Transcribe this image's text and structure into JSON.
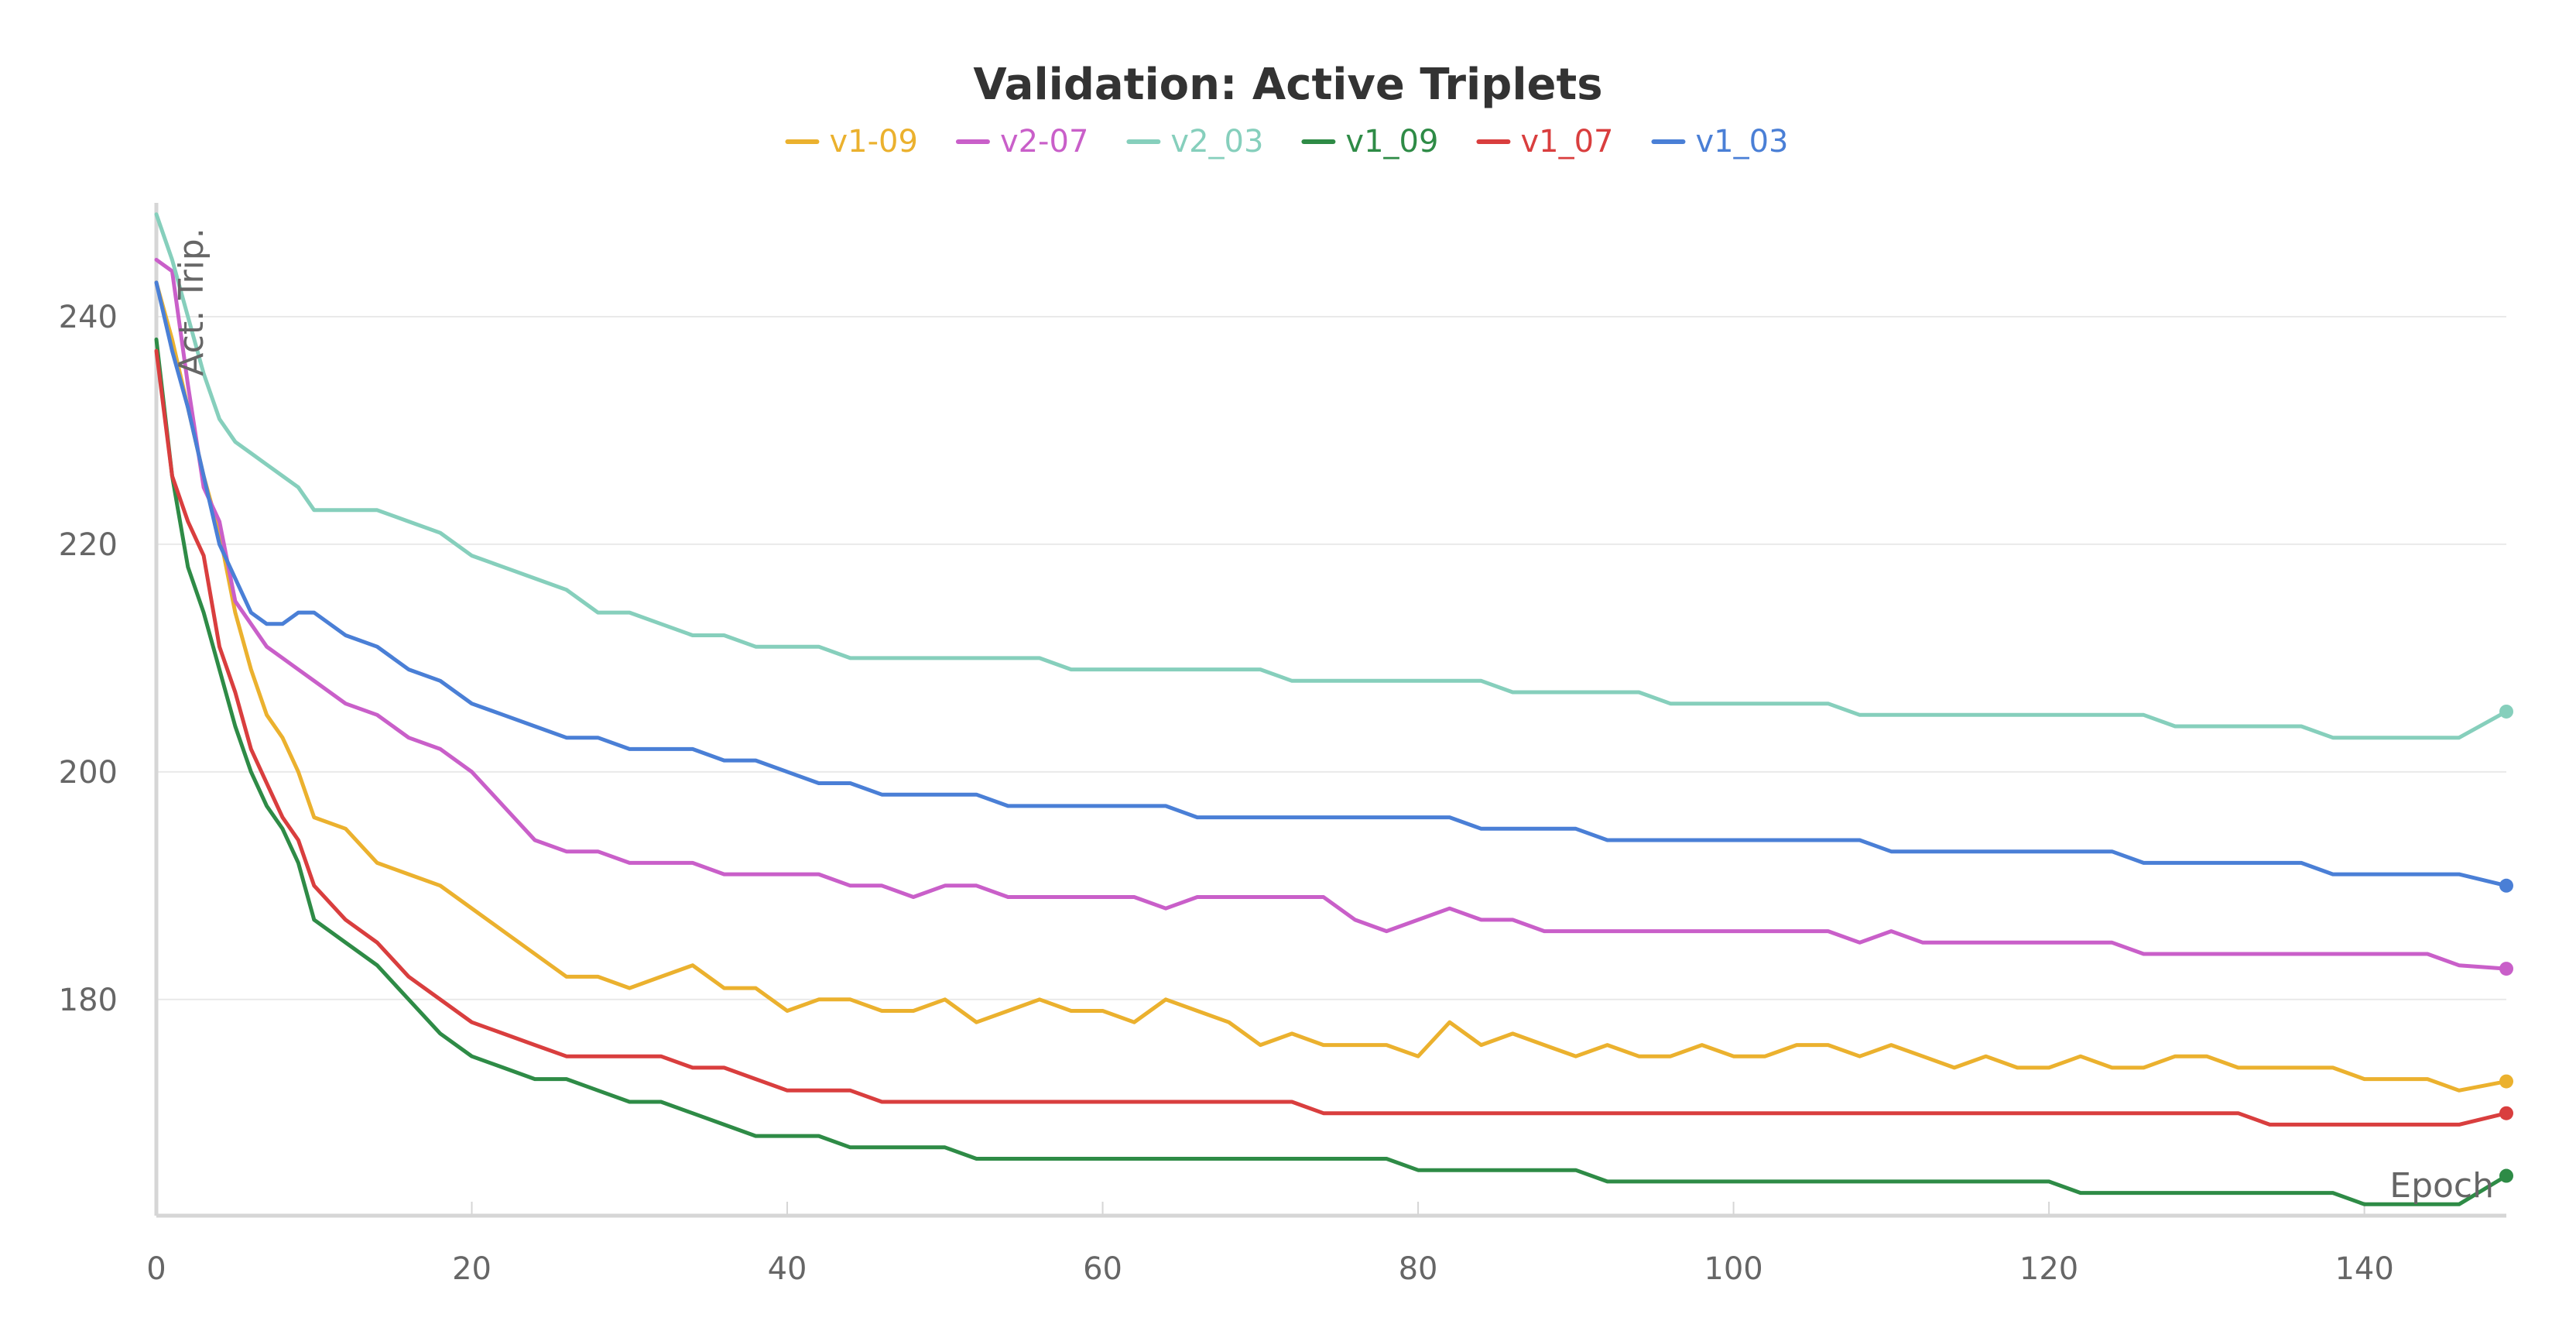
{
  "chart_data": {
    "type": "line",
    "title": "Validation: Active Triplets",
    "xlabel": "Epoch",
    "ylabel": "Act. Trip.",
    "xlim": [
      0,
      149
    ],
    "ylim": [
      161,
      250
    ],
    "x_ticks": [
      0,
      20,
      40,
      60,
      80,
      100,
      120,
      140
    ],
    "y_ticks": [
      180,
      200,
      220,
      240
    ],
    "grid": true,
    "legend_position": "top-center",
    "series": [
      {
        "name": "v1-09",
        "color": "#EBB12E",
        "x": [
          0,
          1,
          2,
          3,
          4,
          5,
          6,
          7,
          8,
          9,
          10,
          12,
          14,
          16,
          18,
          20,
          22,
          24,
          26,
          28,
          30,
          32,
          34,
          36,
          38,
          40,
          42,
          44,
          46,
          48,
          50,
          52,
          54,
          56,
          58,
          60,
          62,
          64,
          66,
          68,
          70,
          72,
          74,
          76,
          78,
          80,
          82,
          84,
          86,
          88,
          90,
          92,
          94,
          96,
          98,
          100,
          102,
          104,
          106,
          108,
          110,
          112,
          114,
          116,
          118,
          120,
          122,
          124,
          126,
          128,
          130,
          132,
          134,
          136,
          138,
          140,
          142,
          144,
          146,
          149
        ],
        "values": [
          243,
          238,
          232,
          226,
          221,
          214,
          209,
          205,
          203,
          200,
          196,
          195,
          192,
          191,
          190,
          188,
          186,
          184,
          182,
          182,
          181,
          182,
          183,
          181,
          181,
          179,
          180,
          180,
          179,
          179,
          180,
          178,
          179,
          180,
          179,
          179,
          178,
          180,
          179,
          178,
          176,
          177,
          176,
          176,
          176,
          175,
          178,
          176,
          177,
          176,
          175,
          176,
          175,
          175,
          176,
          175,
          175,
          176,
          176,
          175,
          176,
          175,
          174,
          175,
          174,
          174,
          175,
          174,
          174,
          175,
          175,
          174,
          174,
          174,
          174,
          173,
          173,
          173,
          172,
          172.8
        ]
      },
      {
        "name": "v2-07",
        "color": "#C95FC9",
        "x": [
          0,
          1,
          2,
          3,
          4,
          5,
          6,
          7,
          8,
          9,
          10,
          12,
          14,
          16,
          18,
          20,
          22,
          24,
          26,
          28,
          30,
          32,
          34,
          36,
          38,
          40,
          42,
          44,
          46,
          48,
          50,
          52,
          54,
          56,
          58,
          60,
          62,
          64,
          66,
          68,
          70,
          72,
          74,
          76,
          78,
          80,
          82,
          84,
          86,
          88,
          90,
          92,
          94,
          96,
          98,
          100,
          102,
          104,
          106,
          108,
          110,
          112,
          114,
          116,
          118,
          120,
          122,
          124,
          126,
          128,
          130,
          132,
          134,
          136,
          138,
          140,
          142,
          144,
          146,
          149
        ],
        "values": [
          245,
          244,
          234,
          225,
          222,
          215,
          213,
          211,
          210,
          209,
          208,
          206,
          205,
          203,
          202,
          200,
          197,
          194,
          193,
          193,
          192,
          192,
          192,
          191,
          191,
          191,
          191,
          190,
          190,
          189,
          190,
          190,
          189,
          189,
          189,
          189,
          189,
          188,
          189,
          189,
          189,
          189,
          189,
          187,
          186,
          187,
          188,
          187,
          187,
          186,
          186,
          186,
          186,
          186,
          186,
          186,
          186,
          186,
          186,
          185,
          186,
          185,
          185,
          185,
          185,
          185,
          185,
          185,
          184,
          184,
          184,
          184,
          184,
          184,
          184,
          184,
          184,
          184,
          183,
          182.7
        ]
      },
      {
        "name": "v2_03",
        "color": "#86CFBC",
        "x": [
          0,
          1,
          2,
          3,
          4,
          5,
          6,
          7,
          8,
          9,
          10,
          12,
          14,
          16,
          18,
          20,
          22,
          24,
          26,
          28,
          30,
          32,
          34,
          36,
          38,
          40,
          42,
          44,
          46,
          48,
          50,
          52,
          54,
          56,
          58,
          60,
          62,
          64,
          66,
          68,
          70,
          72,
          74,
          76,
          78,
          80,
          82,
          84,
          86,
          88,
          90,
          92,
          94,
          96,
          98,
          100,
          102,
          104,
          106,
          108,
          110,
          112,
          114,
          116,
          118,
          120,
          122,
          124,
          126,
          128,
          130,
          132,
          134,
          136,
          138,
          140,
          142,
          144,
          146,
          149
        ],
        "values": [
          249,
          245,
          240,
          235,
          231,
          229,
          228,
          227,
          226,
          225,
          223,
          223,
          223,
          222,
          221,
          219,
          218,
          217,
          216,
          214,
          214,
          213,
          212,
          212,
          211,
          211,
          211,
          210,
          210,
          210,
          210,
          210,
          210,
          210,
          209,
          209,
          209,
          209,
          209,
          209,
          209,
          208,
          208,
          208,
          208,
          208,
          208,
          208,
          207,
          207,
          207,
          207,
          207,
          206,
          206,
          206,
          206,
          206,
          206,
          205,
          205,
          205,
          205,
          205,
          205,
          205,
          205,
          205,
          205,
          204,
          204,
          204,
          204,
          204,
          203,
          203,
          203,
          203,
          203,
          205.3
        ]
      },
      {
        "name": "v1_09",
        "color": "#2E8B46",
        "x": [
          0,
          1,
          2,
          3,
          4,
          5,
          6,
          7,
          8,
          9,
          10,
          12,
          14,
          16,
          18,
          20,
          22,
          24,
          26,
          28,
          30,
          32,
          34,
          36,
          38,
          40,
          42,
          44,
          46,
          48,
          50,
          52,
          54,
          56,
          58,
          60,
          62,
          64,
          66,
          68,
          70,
          72,
          74,
          76,
          78,
          80,
          82,
          84,
          86,
          88,
          90,
          92,
          94,
          96,
          98,
          100,
          102,
          104,
          106,
          108,
          110,
          112,
          114,
          116,
          118,
          120,
          122,
          124,
          126,
          128,
          130,
          132,
          134,
          136,
          138,
          140,
          142,
          144,
          146,
          149
        ],
        "values": [
          238,
          226,
          218,
          214,
          209,
          204,
          200,
          197,
          195,
          192,
          187,
          185,
          183,
          180,
          177,
          175,
          174,
          173,
          173,
          172,
          171,
          171,
          170,
          169,
          168,
          168,
          168,
          167,
          167,
          167,
          167,
          166,
          166,
          166,
          166,
          166,
          166,
          166,
          166,
          166,
          166,
          166,
          166,
          166,
          166,
          165,
          165,
          165,
          165,
          165,
          165,
          164,
          164,
          164,
          164,
          164,
          164,
          164,
          164,
          164,
          164,
          164,
          164,
          164,
          164,
          164,
          163,
          163,
          163,
          163,
          163,
          163,
          163,
          163,
          163,
          162,
          162,
          162,
          162,
          164.5
        ]
      },
      {
        "name": "v1_07",
        "color": "#D93E3E",
        "x": [
          0,
          1,
          2,
          3,
          4,
          5,
          6,
          7,
          8,
          9,
          10,
          12,
          14,
          16,
          18,
          20,
          22,
          24,
          26,
          28,
          30,
          32,
          34,
          36,
          38,
          40,
          42,
          44,
          46,
          48,
          50,
          52,
          54,
          56,
          58,
          60,
          62,
          64,
          66,
          68,
          70,
          72,
          74,
          76,
          78,
          80,
          82,
          84,
          86,
          88,
          90,
          92,
          94,
          96,
          98,
          100,
          102,
          104,
          106,
          108,
          110,
          112,
          114,
          116,
          118,
          120,
          122,
          124,
          126,
          128,
          130,
          132,
          134,
          136,
          138,
          140,
          142,
          144,
          146,
          149
        ],
        "values": [
          237,
          226,
          222,
          219,
          211,
          207,
          202,
          199,
          196,
          194,
          190,
          187,
          185,
          182,
          180,
          178,
          177,
          176,
          175,
          175,
          175,
          175,
          174,
          174,
          173,
          172,
          172,
          172,
          171,
          171,
          171,
          171,
          171,
          171,
          171,
          171,
          171,
          171,
          171,
          171,
          171,
          171,
          170,
          170,
          170,
          170,
          170,
          170,
          170,
          170,
          170,
          170,
          170,
          170,
          170,
          170,
          170,
          170,
          170,
          170,
          170,
          170,
          170,
          170,
          170,
          170,
          170,
          170,
          170,
          170,
          170,
          170,
          169,
          169,
          169,
          169,
          169,
          169,
          169,
          170.0
        ]
      },
      {
        "name": "v1_03",
        "color": "#4A7FD6",
        "x": [
          0,
          1,
          2,
          3,
          4,
          5,
          6,
          7,
          8,
          9,
          10,
          12,
          14,
          16,
          18,
          20,
          22,
          24,
          26,
          28,
          30,
          32,
          34,
          36,
          38,
          40,
          42,
          44,
          46,
          48,
          50,
          52,
          54,
          56,
          58,
          60,
          62,
          64,
          66,
          68,
          70,
          72,
          74,
          76,
          78,
          80,
          82,
          84,
          86,
          88,
          90,
          92,
          94,
          96,
          98,
          100,
          102,
          104,
          106,
          108,
          110,
          112,
          114,
          116,
          118,
          120,
          122,
          124,
          126,
          128,
          130,
          132,
          134,
          136,
          138,
          140,
          142,
          144,
          146,
          149
        ],
        "values": [
          243,
          237,
          232,
          226,
          220,
          217,
          214,
          213,
          213,
          214,
          214,
          212,
          211,
          209,
          208,
          206,
          205,
          204,
          203,
          203,
          202,
          202,
          202,
          201,
          201,
          200,
          199,
          199,
          198,
          198,
          198,
          198,
          197,
          197,
          197,
          197,
          197,
          197,
          196,
          196,
          196,
          196,
          196,
          196,
          196,
          196,
          196,
          195,
          195,
          195,
          195,
          194,
          194,
          194,
          194,
          194,
          194,
          194,
          194,
          194,
          193,
          193,
          193,
          193,
          193,
          193,
          193,
          193,
          192,
          192,
          192,
          192,
          192,
          192,
          191,
          191,
          191,
          191,
          191,
          190.0
        ]
      }
    ]
  }
}
